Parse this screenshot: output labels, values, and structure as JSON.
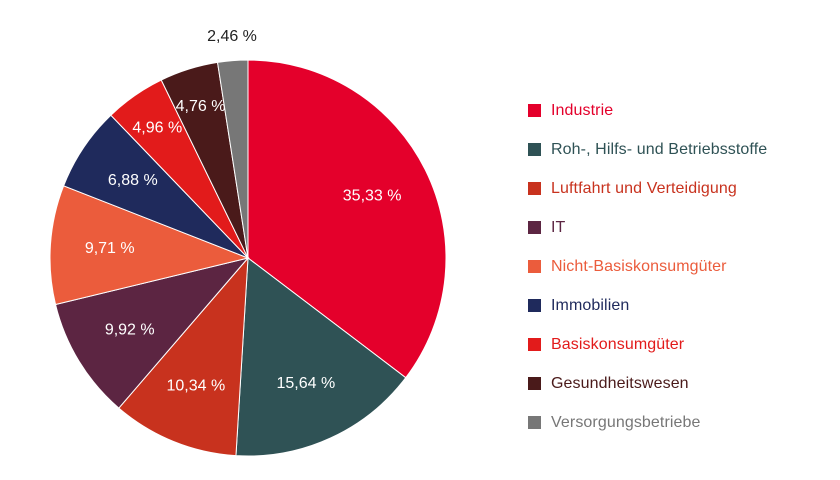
{
  "chart_data": {
    "type": "pie",
    "title": "",
    "series": [
      {
        "label": "Industrie",
        "value": 35.33,
        "display": "35,33 %",
        "color": "#E4002B",
        "label_color": "#ffffff"
      },
      {
        "label": "Roh-, Hilfs- und Betriebsstoffe",
        "value": 15.64,
        "display": "15,64 %",
        "color": "#2F5255",
        "label_color": "#ffffff"
      },
      {
        "label": "Luftfahrt und Verteidigung",
        "value": 10.34,
        "display": "10,34 %",
        "color": "#C8321E",
        "label_color": "#ffffff"
      },
      {
        "label": "IT",
        "value": 9.92,
        "display": "9,92 %",
        "color": "#5C2542",
        "label_color": "#ffffff"
      },
      {
        "label": "Nicht-Basiskonsumgüter",
        "value": 9.71,
        "display": "9,71 %",
        "color": "#EB5C3C",
        "label_color": "#ffffff"
      },
      {
        "label": "Immobilien",
        "value": 6.88,
        "display": "6,88 %",
        "color": "#1F2A5C",
        "label_color": "#ffffff"
      },
      {
        "label": "Basiskonsumgüter",
        "value": 4.96,
        "display": "4,96 %",
        "color": "#E21B1B",
        "label_color": "#ffffff"
      },
      {
        "label": "Gesundheitswesen",
        "value": 4.76,
        "display": "4,76 %",
        "color": "#4A1A1A",
        "label_color": "#ffffff"
      },
      {
        "label": "Versorgungsbetriebe",
        "value": 2.46,
        "display": "2,46 %",
        "color": "#777777",
        "label_color": "#222222"
      }
    ],
    "legend_placement": "right",
    "start": "top, clockwise"
  },
  "legend": {
    "items": [
      {
        "label": "Industrie",
        "color": "#E4002B",
        "text_color": "#E4002B"
      },
      {
        "label": "Roh-, Hilfs- und Betriebsstoffe",
        "color": "#2F5255",
        "text_color": "#2F5255"
      },
      {
        "label": "Luftfahrt und Verteidigung",
        "color": "#C8321E",
        "text_color": "#C8321E"
      },
      {
        "label": "IT",
        "color": "#5C2542",
        "text_color": "#5C2542"
      },
      {
        "label": "Nicht-Basiskonsumgüter",
        "color": "#EB5C3C",
        "text_color": "#EB5C3C"
      },
      {
        "label": "Immobilien",
        "color": "#1F2A5C",
        "text_color": "#1F2A5C"
      },
      {
        "label": "Basiskonsumgüter",
        "color": "#E21B1B",
        "text_color": "#E21B1B"
      },
      {
        "label": "Gesundheitswesen",
        "color": "#4A1A1A",
        "text_color": "#4A1A1A"
      },
      {
        "label": "Versorgungsbetriebe",
        "color": "#777777",
        "text_color": "#777777"
      }
    ]
  }
}
